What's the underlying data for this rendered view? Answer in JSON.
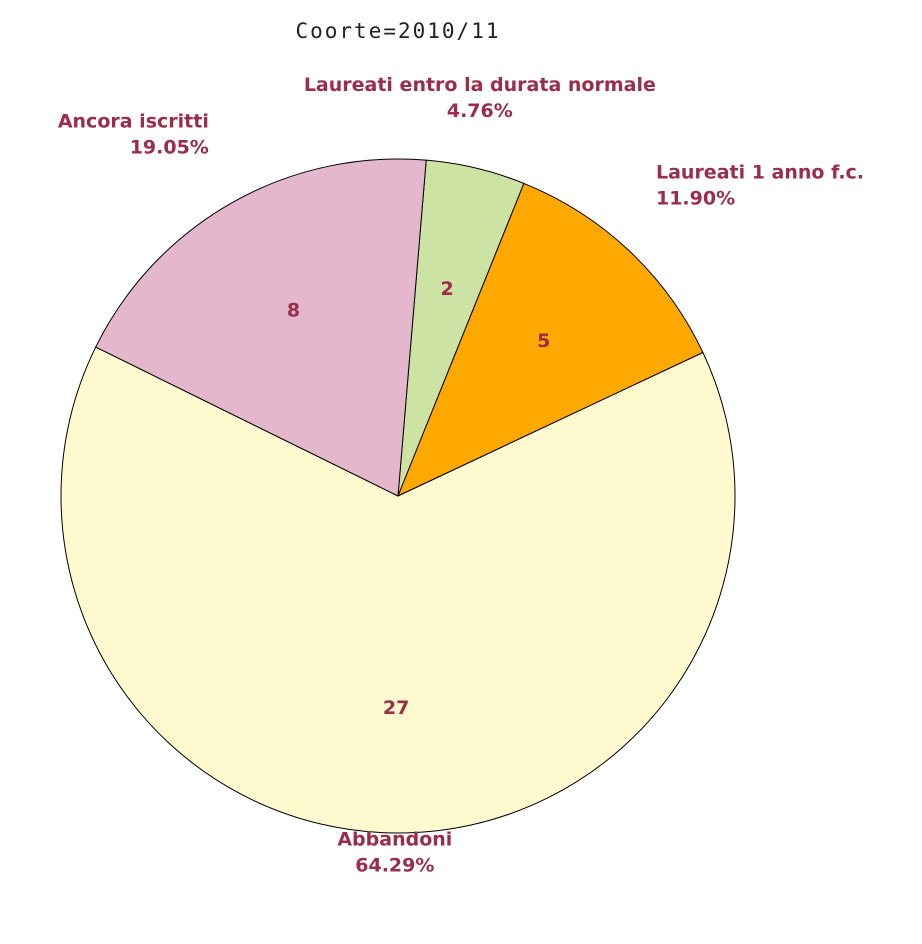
{
  "chart_data": {
    "type": "pie",
    "title": "Coorte=2010/11",
    "categories": [
      "Laureati entro la durata normale",
      "Laureati 1 anno f.c.",
      "Abbandoni",
      "Ancora iscritti"
    ],
    "values": [
      2,
      5,
      27,
      8
    ],
    "percentage_labels": [
      "4.76%",
      "11.90%",
      "64.29%",
      "19.05%"
    ],
    "colors": [
      "#cde3a4",
      "#ffa800",
      "#fff9cf",
      "#e4b7cc"
    ]
  }
}
